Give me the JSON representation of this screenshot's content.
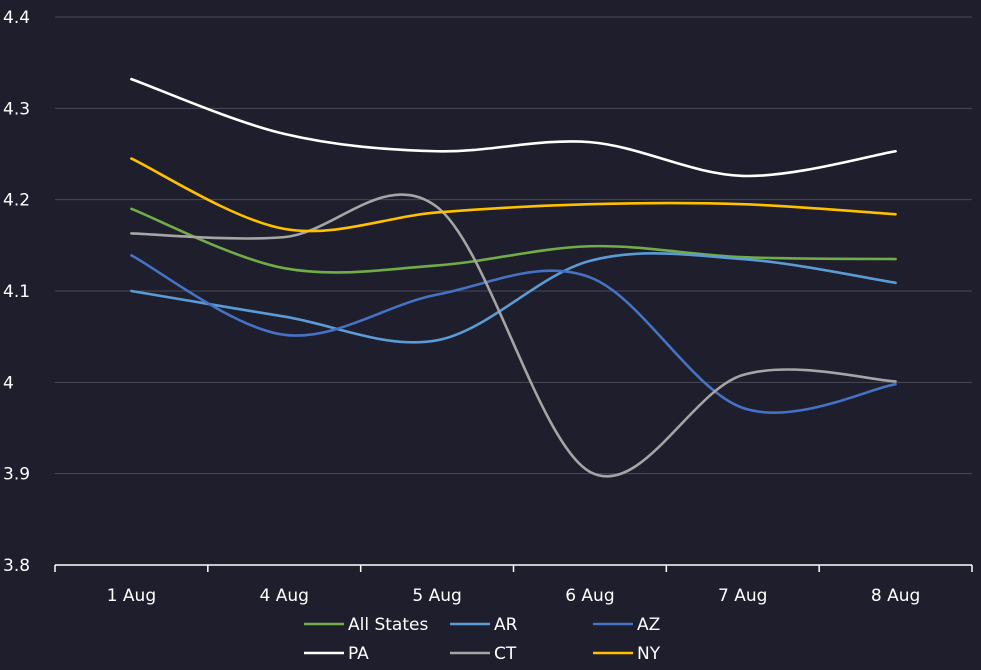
{
  "chart_data": {
    "type": "line",
    "categories": [
      "1 Aug",
      "4 Aug",
      "5 Aug",
      "6 Aug",
      "7 Aug",
      "8 Aug"
    ],
    "ylim": [
      3.8,
      4.4
    ],
    "yticks": [
      {
        "value": 4.4,
        "label": "4.4"
      },
      {
        "value": 4.3,
        "label": "4.3"
      },
      {
        "value": 4.2,
        "label": "4.2"
      },
      {
        "value": 4.1,
        "label": "4.1"
      },
      {
        "value": 4.0,
        "label": "4"
      },
      {
        "value": 3.9,
        "label": "3.9"
      },
      {
        "value": 3.8,
        "label": "3.8"
      }
    ],
    "grid": true,
    "smooth": true,
    "legend_position": "bottom",
    "series": [
      {
        "name": "All States",
        "color": "#70ad47",
        "values": [
          4.19,
          4.125,
          4.128,
          4.149,
          4.137,
          4.135
        ]
      },
      {
        "name": "AR",
        "color": "#5b9bd5",
        "values": [
          4.1,
          4.072,
          4.046,
          4.133,
          4.135,
          4.109
        ]
      },
      {
        "name": "AZ",
        "color": "#4472c4",
        "values": [
          4.139,
          4.052,
          4.096,
          4.115,
          3.972,
          3.998
        ]
      },
      {
        "name": "PA",
        "color": "#ffffff",
        "values": [
          4.332,
          4.272,
          4.253,
          4.263,
          4.226,
          4.253
        ]
      },
      {
        "name": "CT",
        "color": "#a5a5a5",
        "values": [
          4.163,
          4.159,
          4.192,
          3.902,
          4.008,
          4.001
        ]
      },
      {
        "name": "NY",
        "color": "#ffc000",
        "values": [
          4.245,
          4.168,
          4.186,
          4.195,
          4.195,
          4.184
        ]
      }
    ]
  }
}
